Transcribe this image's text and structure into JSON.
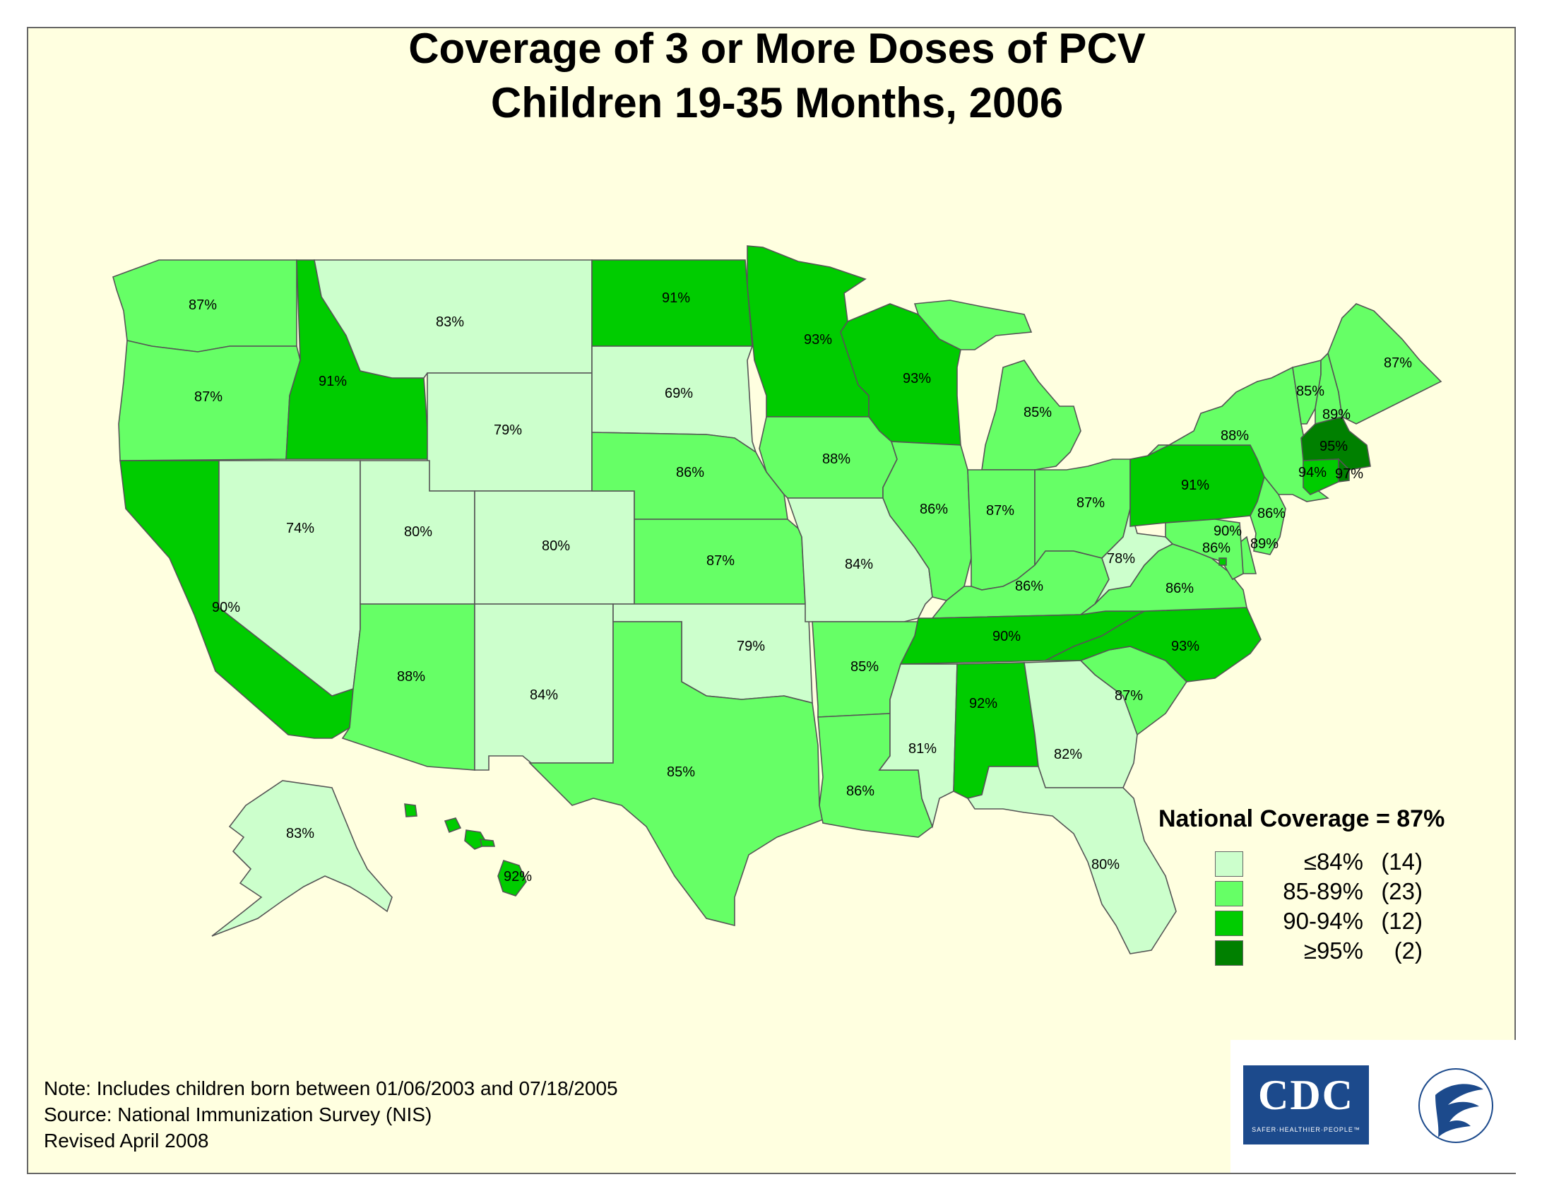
{
  "title": {
    "line1": "Coverage of 3 or More Doses of PCV",
    "line2": "Children 19-35 Months, 2006"
  },
  "colors": {
    "background": "#ffffe0",
    "low": "#ccffcc",
    "mid": "#66ff66",
    "high": "#00cc00",
    "top": "#008000"
  },
  "chart_data": {
    "type": "choropleth",
    "title": "Coverage of 3 or More Doses of PCV, Children 19-35 Months, 2006",
    "states": [
      {
        "state": "WA",
        "value": 87
      },
      {
        "state": "OR",
        "value": 87
      },
      {
        "state": "CA",
        "value": 90
      },
      {
        "state": "ID",
        "value": 91
      },
      {
        "state": "NV",
        "value": 74
      },
      {
        "state": "MT",
        "value": 83
      },
      {
        "state": "WY",
        "value": 79
      },
      {
        "state": "UT",
        "value": 80
      },
      {
        "state": "AZ",
        "value": 88
      },
      {
        "state": "CO",
        "value": 80
      },
      {
        "state": "NM",
        "value": 84
      },
      {
        "state": "ND",
        "value": 91
      },
      {
        "state": "SD",
        "value": 69
      },
      {
        "state": "NE",
        "value": 86
      },
      {
        "state": "KS",
        "value": 87
      },
      {
        "state": "OK",
        "value": 79
      },
      {
        "state": "TX",
        "value": 85
      },
      {
        "state": "MN",
        "value": 93
      },
      {
        "state": "IA",
        "value": 88
      },
      {
        "state": "MO",
        "value": 84
      },
      {
        "state": "AR",
        "value": 85
      },
      {
        "state": "LA",
        "value": 86
      },
      {
        "state": "WI",
        "value": 93
      },
      {
        "state": "IL",
        "value": 86
      },
      {
        "state": "MI",
        "value": 85
      },
      {
        "state": "IN",
        "value": 87
      },
      {
        "state": "OH",
        "value": 87
      },
      {
        "state": "KY",
        "value": 86
      },
      {
        "state": "TN",
        "value": 90
      },
      {
        "state": "MS",
        "value": 81
      },
      {
        "state": "AL",
        "value": 92
      },
      {
        "state": "GA",
        "value": 82
      },
      {
        "state": "FL",
        "value": 80
      },
      {
        "state": "SC",
        "value": 87
      },
      {
        "state": "NC",
        "value": 93
      },
      {
        "state": "VA",
        "value": 86
      },
      {
        "state": "WV",
        "value": 78
      },
      {
        "state": "PA",
        "value": 91
      },
      {
        "state": "NY",
        "value": 88
      },
      {
        "state": "NJ",
        "value": 86
      },
      {
        "state": "DE",
        "value": 89
      },
      {
        "state": "MD",
        "value": 86
      },
      {
        "state": "DC",
        "value": 90
      },
      {
        "state": "CT",
        "value": 94
      },
      {
        "state": "RI",
        "value": 97
      },
      {
        "state": "MA",
        "value": 95
      },
      {
        "state": "VT",
        "value": 85
      },
      {
        "state": "NH",
        "value": 89
      },
      {
        "state": "ME",
        "value": 87
      },
      {
        "state": "AK",
        "value": 83
      },
      {
        "state": "HI",
        "value": 92
      }
    ],
    "legend": [
      {
        "range": "≤84%",
        "count": "(14)",
        "color": "#ccffcc",
        "min": 0,
        "max": 84
      },
      {
        "range": "85-89%",
        "count": "(23)",
        "color": "#66ff66",
        "min": 85,
        "max": 89
      },
      {
        "range": "90-94%",
        "count": "(12)",
        "color": "#00cc00",
        "min": 90,
        "max": 94
      },
      {
        "range": "≥95%",
        "count": "(2)",
        "color": "#008000",
        "min": 95,
        "max": 100
      }
    ],
    "national_coverage": "National Coverage = 87%"
  },
  "notes": {
    "line1": "Note: Includes children born between 01/06/2003 and 07/18/2005",
    "line2": "Source: National Immunization Survey (NIS)",
    "line3": "Revised April 2008"
  },
  "logos": {
    "cdc": "CDC",
    "cdc_tagline": "SAFER·HEALTHIER·PEOPLE™",
    "hhs": "DEPARTMENT OF HEALTH & HUMAN SERVICES USA"
  }
}
